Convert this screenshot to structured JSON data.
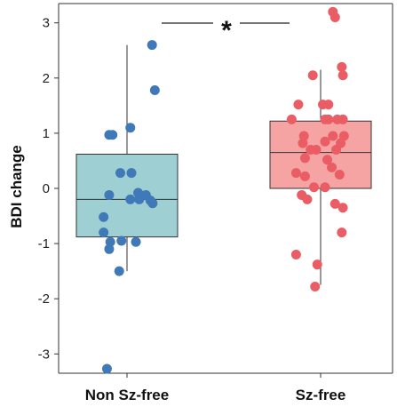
{
  "chart_data": {
    "type": "box",
    "ylabel": "BDI change",
    "ylim": [
      -3.35,
      3.35
    ],
    "yticks": [
      -3,
      -2,
      -1,
      0,
      1,
      2,
      3
    ],
    "ytick_labels": [
      "-3",
      "-2",
      "-1",
      "0",
      "1",
      "2",
      "3"
    ],
    "categories": [
      "Non Sz-free",
      "Sz-free"
    ],
    "significance": {
      "label": "*",
      "between": [
        "Non Sz-free",
        "Sz-free"
      ]
    },
    "series": [
      {
        "category": "Non Sz-free",
        "box_color": "#9ecfd2",
        "point_color": "#3f79b8",
        "box": {
          "q1": -0.88,
          "median": -0.2,
          "q3": 0.62,
          "whisker_low": -1.5,
          "whisker_high": 2.6
        },
        "points": [
          {
            "jitter": 0.45,
            "y": 2.6
          },
          {
            "jitter": 0.5,
            "y": 1.78
          },
          {
            "jitter": 0.06,
            "y": 1.1
          },
          {
            "jitter": -0.32,
            "y": 0.97
          },
          {
            "jitter": -0.26,
            "y": 0.97
          },
          {
            "jitter": -0.12,
            "y": 0.28
          },
          {
            "jitter": 0.08,
            "y": 0.28
          },
          {
            "jitter": 0.2,
            "y": -0.08
          },
          {
            "jitter": -0.32,
            "y": -0.12
          },
          {
            "jitter": 0.34,
            "y": -0.12
          },
          {
            "jitter": 0.06,
            "y": -0.2
          },
          {
            "jitter": 0.22,
            "y": -0.2
          },
          {
            "jitter": 0.42,
            "y": -0.22
          },
          {
            "jitter": 0.46,
            "y": -0.27
          },
          {
            "jitter": -0.42,
            "y": -0.52
          },
          {
            "jitter": -0.42,
            "y": -0.8
          },
          {
            "jitter": -0.1,
            "y": -0.95
          },
          {
            "jitter": 0.16,
            "y": -0.97
          },
          {
            "jitter": -0.3,
            "y": -0.97
          },
          {
            "jitter": -0.32,
            "y": -1.1
          },
          {
            "jitter": -0.14,
            "y": -1.5
          },
          {
            "jitter": -0.36,
            "y": -3.27
          }
        ]
      },
      {
        "category": "Sz-free",
        "box_color": "#f5a3a3",
        "point_color": "#ea5d65",
        "box": {
          "q1": 0.0,
          "median": 0.65,
          "q3": 1.22,
          "whisker_low": -1.75,
          "whisker_high": 2.15
        },
        "points": [
          {
            "jitter": 0.22,
            "y": 3.2
          },
          {
            "jitter": 0.26,
            "y": 3.1
          },
          {
            "jitter": 0.38,
            "y": 2.2
          },
          {
            "jitter": 0.4,
            "y": 2.05
          },
          {
            "jitter": -0.14,
            "y": 2.05
          },
          {
            "jitter": -0.4,
            "y": 1.52
          },
          {
            "jitter": 0.04,
            "y": 1.52
          },
          {
            "jitter": 0.14,
            "y": 1.52
          },
          {
            "jitter": -0.52,
            "y": 1.25
          },
          {
            "jitter": 0.08,
            "y": 1.25
          },
          {
            "jitter": 0.14,
            "y": 1.25
          },
          {
            "jitter": 0.3,
            "y": 1.25
          },
          {
            "jitter": 0.4,
            "y": 1.25
          },
          {
            "jitter": -0.3,
            "y": 0.95
          },
          {
            "jitter": 0.22,
            "y": 0.95
          },
          {
            "jitter": 0.42,
            "y": 0.95
          },
          {
            "jitter": 0.08,
            "y": 0.85
          },
          {
            "jitter": 0.36,
            "y": 0.82
          },
          {
            "jitter": -0.32,
            "y": 0.82
          },
          {
            "jitter": -0.18,
            "y": 0.7
          },
          {
            "jitter": -0.08,
            "y": 0.7
          },
          {
            "jitter": 0.28,
            "y": 0.7
          },
          {
            "jitter": -0.28,
            "y": 0.55
          },
          {
            "jitter": 0.12,
            "y": 0.52
          },
          {
            "jitter": 0.2,
            "y": 0.38
          },
          {
            "jitter": -0.44,
            "y": 0.28
          },
          {
            "jitter": 0.34,
            "y": 0.25
          },
          {
            "jitter": -0.28,
            "y": 0.22
          },
          {
            "jitter": -0.12,
            "y": 0.02
          },
          {
            "jitter": 0.08,
            "y": 0.02
          },
          {
            "jitter": -0.34,
            "y": -0.12
          },
          {
            "jitter": -0.24,
            "y": -0.2
          },
          {
            "jitter": 0.26,
            "y": -0.28
          },
          {
            "jitter": 0.4,
            "y": -0.35
          },
          {
            "jitter": -0.44,
            "y": -1.2
          },
          {
            "jitter": -0.06,
            "y": -1.38
          },
          {
            "jitter": -0.1,
            "y": -1.78
          },
          {
            "jitter": 0.38,
            "y": -0.8
          }
        ]
      }
    ]
  }
}
